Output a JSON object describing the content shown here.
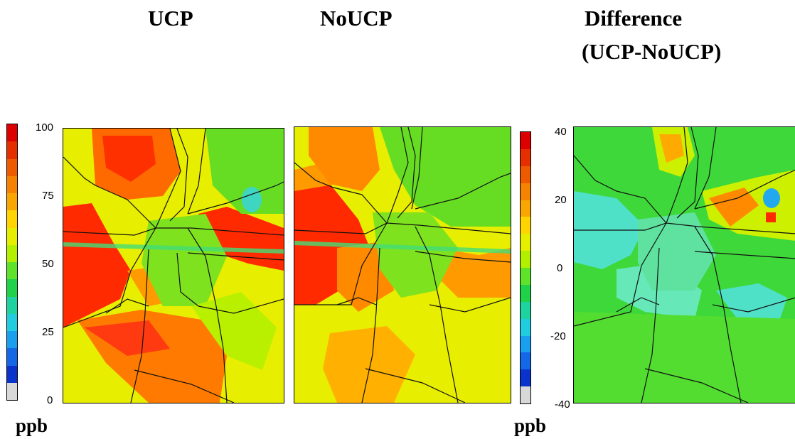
{
  "titles": {
    "ucp": "UCP",
    "noucp": "NoUCP",
    "difference_line1": "Difference",
    "difference_line2": "(UCP-NoUCP)"
  },
  "colorbar_left": {
    "unit": "ppb",
    "ticks": [
      "100",
      "75",
      "50",
      "25",
      "0"
    ],
    "colors": [
      "#dd0000",
      "#e62f00",
      "#ee5a00",
      "#f58200",
      "#faa600",
      "#ffd400",
      "#e6ee00",
      "#b3f000",
      "#5fe22a",
      "#1fd24a",
      "#1ed3a0",
      "#22ccdf",
      "#1a9fee",
      "#1468e6",
      "#0a33cc",
      "#d8d8d8"
    ]
  },
  "colorbar_right": {
    "unit": "ppb",
    "ticks": [
      "40",
      "20",
      "0",
      "-20",
      "-40"
    ],
    "colors": [
      "#dd0000",
      "#e62f00",
      "#ee5a00",
      "#f58200",
      "#faa600",
      "#ffd400",
      "#e6ee00",
      "#b3f000",
      "#5fe22a",
      "#1fd24a",
      "#1ed3a0",
      "#22ccdf",
      "#1a9fee",
      "#1468e6",
      "#0a33cc",
      "#d8d8d8"
    ]
  },
  "maps": {
    "ucp": {
      "background": "#e8ee00"
    },
    "noucp": {
      "background": "#e8ee00"
    },
    "difference": {
      "background": "#3fd83a"
    }
  }
}
